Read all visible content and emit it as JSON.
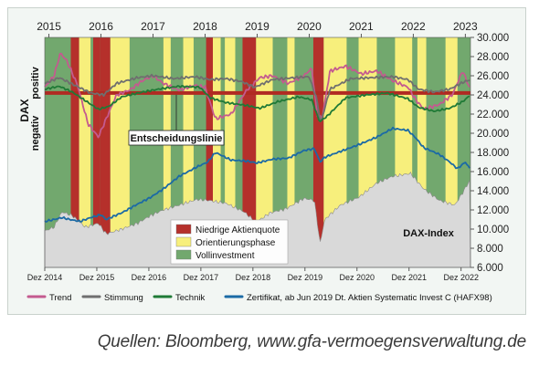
{
  "chart_data": {
    "type": "line",
    "top_axis_years": [
      "2015",
      "2016",
      "2017",
      "2018",
      "2019",
      "2020",
      "2021",
      "2022",
      "2023"
    ],
    "bottom_ticks": [
      "Dez 2014",
      "Dez 2015",
      "Dez 2016",
      "Dez 2017",
      "Dez 2018",
      "Dez 2019",
      "Dez 2020",
      "Dez 2021",
      "Dez 2022"
    ],
    "y_ticks": [
      "6.000",
      "8.000",
      "10.000",
      "12.000",
      "14.000",
      "16.000",
      "18.000",
      "20.000",
      "22.000",
      "24.000",
      "26.000",
      "28.000",
      "30.000"
    ],
    "ylim": [
      6000,
      30000
    ],
    "xlim": [
      2014.92,
      2023.1
    ],
    "left_label": {
      "title": "DAX",
      "positive": "positiv",
      "negative": "negativ"
    },
    "decision_line": {
      "label": "Entscheidungslinie",
      "y": 24200,
      "color": "#b02a22"
    },
    "regimes": {
      "legend": [
        {
          "key": "red",
          "label": "Niedrige Aktienquote",
          "color": "#b5302b"
        },
        {
          "key": "yellow",
          "label": "Orientierungsphase",
          "color": "#f7ef7c"
        },
        {
          "key": "green",
          "label": "Vollinvestment",
          "color": "#72a86e"
        }
      ],
      "default": "green",
      "periods": [
        {
          "from": 2015.42,
          "to": 2015.58,
          "regime": "red"
        },
        {
          "from": 2015.58,
          "to": 2015.8,
          "regime": "yellow"
        },
        {
          "from": 2015.85,
          "to": 2015.98,
          "regime": "red"
        },
        {
          "from": 2015.98,
          "to": 2016.18,
          "regime": "red"
        },
        {
          "from": 2016.18,
          "to": 2016.55,
          "regime": "yellow"
        },
        {
          "from": 2017.2,
          "to": 2017.34,
          "regime": "yellow"
        },
        {
          "from": 2017.58,
          "to": 2017.78,
          "regime": "yellow"
        },
        {
          "from": 2018.02,
          "to": 2018.15,
          "regime": "red"
        },
        {
          "from": 2018.15,
          "to": 2018.3,
          "regime": "yellow"
        },
        {
          "from": 2018.38,
          "to": 2018.58,
          "regime": "yellow"
        },
        {
          "from": 2018.72,
          "to": 2018.98,
          "regime": "red"
        },
        {
          "from": 2018.98,
          "to": 2019.3,
          "regime": "yellow"
        },
        {
          "from": 2019.58,
          "to": 2019.72,
          "regime": "yellow"
        },
        {
          "from": 2020.08,
          "to": 2020.28,
          "regime": "red"
        },
        {
          "from": 2020.28,
          "to": 2020.72,
          "regime": "yellow"
        },
        {
          "from": 2020.95,
          "to": 2021.3,
          "regime": "yellow"
        },
        {
          "from": 2021.65,
          "to": 2021.98,
          "regime": "yellow"
        },
        {
          "from": 2022.08,
          "to": 2022.25,
          "regime": "yellow"
        },
        {
          "from": 2022.62,
          "to": 2022.85,
          "regime": "yellow"
        }
      ]
    },
    "dax_index_label": "DAX-Index",
    "dax_area": {
      "color": "#d9d9d9",
      "x": [
        2014.92,
        2015.1,
        2015.25,
        2015.45,
        2015.7,
        2015.95,
        2016.1,
        2016.4,
        2016.7,
        2016.95,
        2017.2,
        2017.5,
        2017.85,
        2018.05,
        2018.4,
        2018.75,
        2018.98,
        2019.25,
        2019.55,
        2019.9,
        2020.1,
        2020.21,
        2020.3,
        2020.6,
        2020.95,
        2021.3,
        2021.6,
        2021.95,
        2022.2,
        2022.5,
        2022.8,
        2022.95,
        2023.1
      ],
      "y": [
        9800,
        10200,
        11800,
        11400,
        10200,
        10600,
        9500,
        10000,
        10600,
        11400,
        12000,
        12500,
        13100,
        13000,
        12700,
        11800,
        10700,
        11700,
        12100,
        13200,
        13000,
        8500,
        11000,
        12500,
        13300,
        14800,
        15500,
        15800,
        14200,
        13000,
        12500,
        13800,
        15200
      ]
    },
    "series": [
      {
        "name": "Trend",
        "color": "#c45a8f",
        "x": [
          2014.92,
          2015.1,
          2015.22,
          2015.35,
          2015.55,
          2015.75,
          2015.95,
          2016.1,
          2016.3,
          2016.55,
          2016.8,
          2017.0,
          2017.2,
          2017.5,
          2017.8,
          2018.0,
          2018.2,
          2018.5,
          2018.8,
          2019.05,
          2019.3,
          2019.6,
          2019.9,
          2020.05,
          2020.15,
          2020.25,
          2020.4,
          2020.7,
          2021.0,
          2021.3,
          2021.6,
          2021.9,
          2022.05,
          2022.2,
          2022.5,
          2022.75,
          2022.95,
          2023.1
        ],
        "y": [
          24800,
          26000,
          28400,
          27500,
          25000,
          21000,
          19600,
          21500,
          24000,
          24500,
          25500,
          26000,
          25200,
          24500,
          25000,
          24800,
          21500,
          22000,
          24500,
          25800,
          26000,
          25200,
          26000,
          26800,
          22000,
          21500,
          26500,
          27000,
          26200,
          26500,
          25500,
          24800,
          23500,
          22500,
          23000,
          24000,
          26500,
          24500
        ]
      },
      {
        "name": "Stimmung",
        "color": "#6f6f6f",
        "x": [
          2014.92,
          2015.2,
          2015.5,
          2015.8,
          2016.05,
          2016.3,
          2016.7,
          2017.0,
          2017.4,
          2017.8,
          2018.1,
          2018.4,
          2018.7,
          2018.95,
          2019.3,
          2019.7,
          2020.0,
          2020.15,
          2020.22,
          2020.4,
          2020.8,
          2021.2,
          2021.6,
          2021.9,
          2022.1,
          2022.4,
          2022.7,
          2022.95,
          2023.1
        ],
        "y": [
          25200,
          25800,
          25000,
          24200,
          24000,
          25200,
          25800,
          26000,
          25700,
          25900,
          25600,
          25700,
          25400,
          24800,
          25600,
          25800,
          25900,
          23500,
          21000,
          24600,
          25700,
          25800,
          25900,
          25600,
          24600,
          24300,
          24600,
          25300,
          25600
        ]
      },
      {
        "name": "Technik",
        "color": "#1f7a36",
        "x": [
          2014.92,
          2015.2,
          2015.45,
          2015.7,
          2015.95,
          2016.15,
          2016.4,
          2016.8,
          2017.1,
          2017.5,
          2017.9,
          2018.1,
          2018.4,
          2018.8,
          2019.05,
          2019.4,
          2019.8,
          2020.05,
          2020.2,
          2020.35,
          2020.7,
          2021.1,
          2021.5,
          2021.9,
          2022.1,
          2022.4,
          2022.7,
          2022.95,
          2023.1
        ],
        "y": [
          24600,
          24900,
          24300,
          23400,
          22500,
          22800,
          23800,
          24300,
          24600,
          24900,
          24800,
          23700,
          23200,
          22900,
          22600,
          23300,
          23800,
          23500,
          21200,
          21800,
          23700,
          24000,
          24200,
          23600,
          22700,
          22300,
          22600,
          23300,
          24000
        ]
      },
      {
        "name": "Zertifikat, ab Jun 2019 Dt. Aktien Systematic Invest C (HAFX98)",
        "color": "#1b6aa5",
        "x": [
          2014.92,
          2015.1,
          2015.25,
          2015.4,
          2015.6,
          2015.8,
          2016.0,
          2016.1,
          2016.4,
          2016.7,
          2016.95,
          2017.2,
          2017.5,
          2017.85,
          2018.05,
          2018.2,
          2018.5,
          2018.8,
          2019.0,
          2019.3,
          2019.6,
          2019.9,
          2020.1,
          2020.21,
          2020.3,
          2020.6,
          2020.95,
          2021.3,
          2021.6,
          2021.9,
          2022.05,
          2022.2,
          2022.5,
          2022.7,
          2022.85,
          2023.0,
          2023.1
        ],
        "y": [
          10800,
          11000,
          11200,
          11000,
          10800,
          11200,
          11500,
          11000,
          11700,
          12600,
          13300,
          14200,
          15500,
          16500,
          17000,
          18000,
          17200,
          17100,
          16900,
          17300,
          17400,
          18200,
          18400,
          17000,
          17500,
          18100,
          18800,
          19600,
          20500,
          20300,
          19500,
          18500,
          17800,
          17000,
          16300,
          17000,
          16200
        ]
      }
    ],
    "grid": false,
    "legend_position": "bottom"
  },
  "source": "Quellen: Bloomberg, www.gfa-vermoegensverwaltung.de"
}
